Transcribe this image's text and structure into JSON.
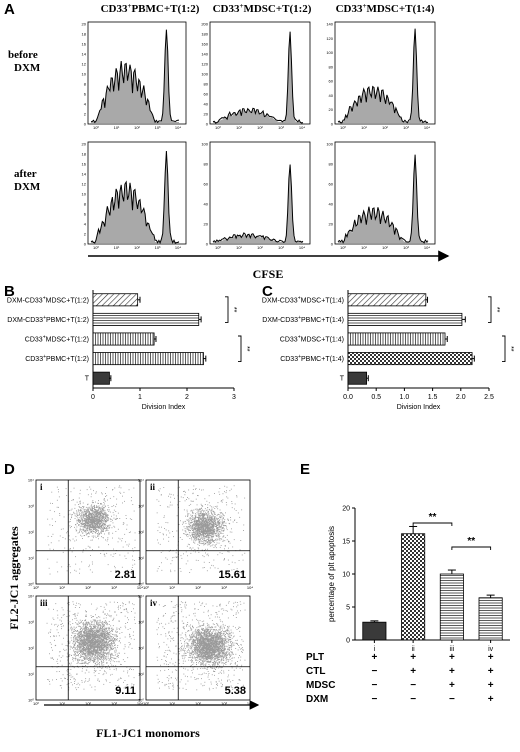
{
  "panel_a": {
    "letter": "A",
    "col1": {
      "prefix": "CD33",
      "sup": "+",
      "rest": "PBMC+T(1:2)"
    },
    "col2": {
      "prefix": "CD33",
      "sup": "+",
      "rest": "MDSC+T(1:2)"
    },
    "col3": {
      "prefix": "CD33",
      "sup": "+",
      "rest": "MDSC+T(1:4)"
    },
    "row1": {
      "line1": "before",
      "line2": "DXM"
    },
    "row2": {
      "line1": "after",
      "line2": "DXM"
    },
    "xlabel": "CFSE"
  },
  "panel_d": {
    "letter": "D",
    "ylabel": "FL2-JC1 aggregates",
    "xlabel": "FL1-JC1 monomors",
    "plots": [
      {
        "roman": "i",
        "value": "2.81"
      },
      {
        "roman": "ii",
        "value": "15.61"
      },
      {
        "roman": "iii",
        "value": "9.11"
      },
      {
        "roman": "iv",
        "value": "5.38"
      }
    ]
  },
  "chart_data": [
    {
      "panel": "B",
      "type": "bar",
      "orientation": "horizontal",
      "categories": [
        "DXM-CD33+MDSC+T(1:2)",
        "DXM-CD33+PBMC+T(1:2)",
        "CD33+MDSC+T(1:2)",
        "CD33+PBMC+T(1:2)",
        "T"
      ],
      "category_labels": [
        {
          "pre": "DXM-CD33",
          "sup": "+",
          "post": "MDSC+T(1:2)"
        },
        {
          "pre": "DXM-CD33",
          "sup": "+",
          "post": "PBMC+T(1:2)"
        },
        {
          "pre": "CD33",
          "sup": "+",
          "post": "MDSC+T(1:2)"
        },
        {
          "pre": "CD33",
          "sup": "+",
          "post": "PBMC+T(1:2)"
        },
        {
          "pre": "T",
          "sup": "",
          "post": ""
        }
      ],
      "values": [
        0.95,
        2.25,
        1.3,
        2.35,
        0.35
      ],
      "errors": [
        0.05,
        0.05,
        0.04,
        0.05,
        0.03
      ],
      "patterns": [
        "diag",
        "hlines",
        "vlines",
        "vlines",
        "solid"
      ],
      "xlabel": "Division Index",
      "xlim": [
        0,
        3
      ],
      "xticks": [
        "0",
        "1",
        "2",
        "3"
      ],
      "significance": [
        "**",
        "**"
      ]
    },
    {
      "panel": "C",
      "type": "bar",
      "orientation": "horizontal",
      "categories": [
        "DXM-CD33+MDSC+T(1:4)",
        "DXM-CD33+PBMC+T(1:4)",
        "CD33+MDSC+T(1:4)",
        "CD33+PBMC+T(1:4)",
        "T"
      ],
      "category_labels": [
        {
          "pre": "DXM-CD33",
          "sup": "+",
          "post": "MDSC+T(1:4)"
        },
        {
          "pre": "DXM-CD33",
          "sup": "+",
          "post": "PBMC+T(1:4)"
        },
        {
          "pre": "CD33",
          "sup": "+",
          "post": "MDSC+T(1:4)"
        },
        {
          "pre": "CD33",
          "sup": "+",
          "post": "PBMC+T(1:4)"
        },
        {
          "pre": "T",
          "sup": "",
          "post": ""
        }
      ],
      "values": [
        1.38,
        2.02,
        1.72,
        2.2,
        0.33
      ],
      "errors": [
        0.03,
        0.06,
        0.04,
        0.04,
        0.03
      ],
      "patterns": [
        "diag",
        "hlines",
        "vlines",
        "checker",
        "solid"
      ],
      "xlabel": "Division Index",
      "xlim": [
        0,
        2.5
      ],
      "xticks": [
        "0.0",
        "0.5",
        "1.0",
        "1.5",
        "2.0",
        "2.5"
      ],
      "significance": [
        "**",
        "**"
      ]
    },
    {
      "panel": "E",
      "type": "bar",
      "categories": [
        "i",
        "ii",
        "iii",
        "iv"
      ],
      "values": [
        2.7,
        16.1,
        10.0,
        6.4
      ],
      "errors": [
        0.2,
        1.1,
        0.6,
        0.4
      ],
      "patterns": [
        "solid",
        "checker",
        "hlines",
        "hlines"
      ],
      "ylabel": "percentage of plt apoptosis",
      "ylim": [
        0,
        20
      ],
      "yticks": [
        "0",
        "5",
        "10",
        "15",
        "20"
      ],
      "significance": [
        "**",
        "**"
      ],
      "condition_table": [
        {
          "label": "PLT",
          "marks": [
            "+",
            "+",
            "+",
            "+"
          ]
        },
        {
          "label": "CTL",
          "marks": [
            "−",
            "+",
            "+",
            "+"
          ]
        },
        {
          "label": "MDSC",
          "marks": [
            "−",
            "−",
            "+",
            "+"
          ]
        },
        {
          "label": "DXM",
          "marks": [
            "−",
            "−",
            "−",
            "+"
          ]
        }
      ]
    }
  ]
}
